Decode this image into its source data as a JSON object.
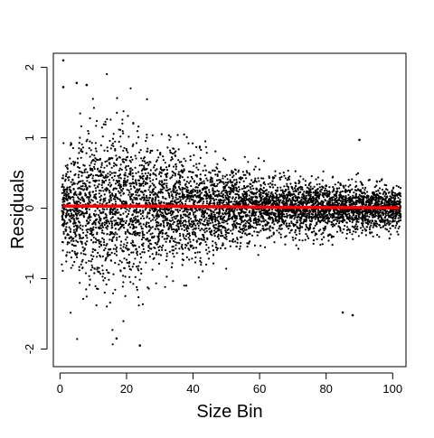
{
  "chart_data": {
    "type": "scatter",
    "title": "",
    "xlabel": "Size Bin",
    "ylabel": "Residuals",
    "xlim": [
      -2,
      104
    ],
    "ylim": [
      -2.25,
      2.2
    ],
    "xticks": [
      0,
      20,
      40,
      60,
      80,
      100
    ],
    "xtick_labels": [
      "0",
      "20",
      "40",
      "60",
      "80",
      "100"
    ],
    "yticks": [
      -2,
      -1,
      0,
      1,
      2
    ],
    "ytick_labels": [
      "-2",
      "-1",
      "0",
      "1",
      "2"
    ],
    "grid": false,
    "colors": {
      "points": "#000000",
      "trend": "#ff0000"
    },
    "trend_line": {
      "x": [
        1,
        10,
        20,
        30,
        40,
        50,
        60,
        70,
        80,
        90,
        102
      ],
      "y": [
        0.03,
        0.03,
        0.03,
        0.028,
        0.025,
        0.02,
        0.015,
        0.012,
        0.01,
        0.008,
        0.005
      ]
    },
    "spread_by_x": {
      "x": [
        1,
        5,
        10,
        15,
        20,
        25,
        30,
        40,
        50,
        60,
        70,
        80,
        90,
        100,
        102
      ],
      "sd": [
        0.3,
        0.45,
        0.55,
        0.6,
        0.55,
        0.5,
        0.45,
        0.35,
        0.28,
        0.22,
        0.18,
        0.17,
        0.16,
        0.15,
        0.15
      ]
    },
    "highlighted_points": [
      {
        "x": 1,
        "y": 2.1
      },
      {
        "x": 1,
        "y": 1.72
      },
      {
        "x": 5,
        "y": 1.78
      },
      {
        "x": 8,
        "y": 1.75
      },
      {
        "x": 24,
        "y": -1.95
      },
      {
        "x": 17,
        "y": -1.85
      },
      {
        "x": 90,
        "y": 0.97
      },
      {
        "x": 88,
        "y": -1.52
      },
      {
        "x": 85,
        "y": -1.48
      }
    ]
  }
}
